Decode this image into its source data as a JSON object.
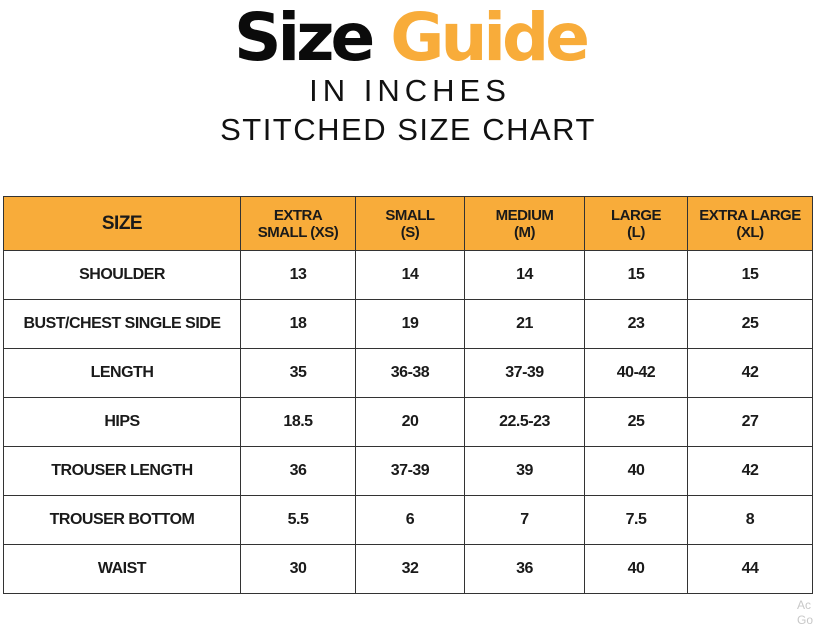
{
  "header": {
    "title_part1": "Size",
    "title_part2": "Guide",
    "subtitle": "IN INCHES",
    "chart_title": "STITCHED SIZE CHART"
  },
  "colors": {
    "accent": "#f8ac3a",
    "title_dark": "#0b0b0b",
    "border": "#333333"
  },
  "table": {
    "corner_label": "SIZE",
    "columns": [
      {
        "line1": "EXTRA",
        "line2": "SMALL (XS)"
      },
      {
        "line1": "SMALL",
        "line2": "(S)"
      },
      {
        "line1": "MEDIUM",
        "line2": "(M)"
      },
      {
        "line1": "LARGE",
        "line2": "(L)"
      },
      {
        "line1": "EXTRA LARGE",
        "line2": "(XL)"
      }
    ],
    "rows": [
      {
        "label": "SHOULDER",
        "values": [
          "13",
          "14",
          "14",
          "15",
          "15"
        ]
      },
      {
        "label": "BUST/CHEST SINGLE SIDE",
        "values": [
          "18",
          "19",
          "21",
          "23",
          "25"
        ]
      },
      {
        "label": "LENGTH",
        "values": [
          "35",
          "36-38",
          "37-39",
          "40-42",
          "42"
        ]
      },
      {
        "label": "HIPS",
        "values": [
          "18.5",
          "20",
          "22.5-23",
          "25",
          "27"
        ]
      },
      {
        "label": "TROUSER LENGTH",
        "values": [
          "36",
          "37-39",
          "39",
          "40",
          "42"
        ]
      },
      {
        "label": "TROUSER BOTTOM",
        "values": [
          "5.5",
          "6",
          "7",
          "7.5",
          "8"
        ]
      },
      {
        "label": "WAIST",
        "values": [
          "30",
          "32",
          "36",
          "40",
          "44"
        ]
      }
    ]
  },
  "watermark": {
    "line1": "Ac",
    "line2": "Go"
  }
}
